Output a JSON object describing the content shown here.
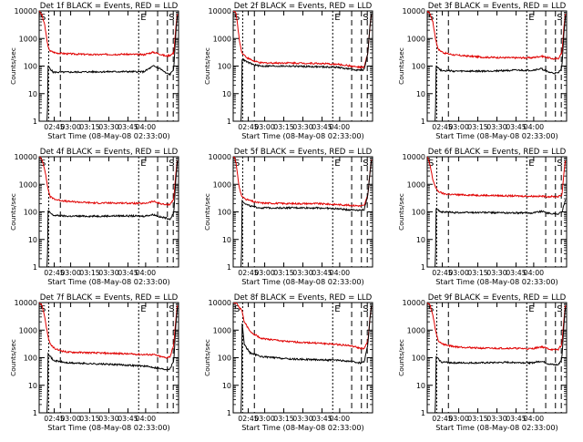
{
  "figure": {
    "ylabel": "Counts/sec",
    "xlabel": "Start Time (08-May-08 02:33:00)",
    "legend": "BLACK = Events, RED = LLD",
    "ticks": [
      "02:45",
      "03:00",
      "03:15",
      "03:30",
      "03:45",
      "04:00"
    ],
    "yticks": [
      "1",
      "10",
      "100",
      "1000",
      "10000"
    ]
  },
  "colors": {
    "events": "#000000",
    "lld": "#e00000"
  },
  "chart_data": [
    {
      "type": "line",
      "title": "Det 1f BLACK = Events, RED = LLD",
      "marker_s": "S",
      "marker_e": "E",
      "ylim": [
        1,
        10000
      ],
      "xlim_min": [
        0,
        100
      ],
      "events_min": [
        0,
        5.9,
        6.3,
        10,
        20,
        40,
        60,
        75,
        82,
        87,
        91,
        94,
        96.6,
        98.2,
        99.5
      ],
      "events_cps": [
        1,
        1,
        100,
        60,
        60,
        62,
        63,
        62,
        100,
        80,
        55,
        50,
        80,
        2000,
        10000
      ],
      "lld_min": [
        0,
        2,
        4,
        6.3,
        8,
        12,
        20,
        40,
        60,
        75,
        82,
        87,
        91,
        94,
        96.6,
        98.2,
        99.5
      ],
      "lld_cps": [
        10000,
        7000,
        3000,
        500,
        350,
        300,
        280,
        260,
        270,
        260,
        320,
        270,
        230,
        250,
        300,
        3000,
        10000
      ]
    },
    {
      "type": "line",
      "title": "Det 2f BLACK = Events, RED = LLD",
      "marker_s": "S",
      "marker_e": "E",
      "ylim": [
        1,
        10000
      ],
      "xlim_min": [
        0,
        100
      ],
      "events_min": [
        0,
        5.9,
        6.3,
        10,
        15,
        20,
        40,
        60,
        75,
        82,
        87,
        91,
        94,
        96.6,
        98.2,
        99.5
      ],
      "events_cps": [
        1,
        1,
        180,
        140,
        110,
        100,
        100,
        95,
        90,
        80,
        75,
        70,
        75,
        300,
        3000,
        10000
      ],
      "lld_min": [
        0,
        1,
        2,
        3.2,
        4.5,
        6.3,
        10,
        15,
        20,
        40,
        60,
        75,
        82,
        87,
        91,
        94,
        96.6,
        98.2,
        99.5
      ],
      "lld_cps": [
        10000,
        10000,
        8000,
        3000,
        800,
        300,
        200,
        150,
        130,
        130,
        125,
        115,
        105,
        95,
        90,
        90,
        300,
        3000,
        10000
      ]
    },
    {
      "type": "line",
      "title": "Det 3f BLACK = Events, RED = LLD",
      "marker_s": "S",
      "marker_e": "E",
      "ylim": [
        1,
        10000
      ],
      "xlim_min": [
        0,
        100
      ],
      "events_min": [
        0,
        5.9,
        6.3,
        10,
        20,
        40,
        60,
        75,
        82,
        87,
        91,
        94,
        96.6,
        98.2,
        99.5
      ],
      "events_cps": [
        1,
        1,
        100,
        70,
        65,
        65,
        70,
        70,
        80,
        60,
        55,
        55,
        90,
        2000,
        10000
      ],
      "lld_min": [
        0,
        2,
        4,
        6.3,
        8,
        12,
        20,
        40,
        60,
        75,
        82,
        87,
        91,
        94,
        96.6,
        98.2,
        99.5
      ],
      "lld_cps": [
        10000,
        8000,
        4000,
        800,
        400,
        300,
        250,
        210,
        200,
        200,
        230,
        200,
        180,
        190,
        300,
        3000,
        10000
      ]
    },
    {
      "type": "line",
      "title": "Det 4f BLACK = Events, RED = LLD",
      "marker_s": "S",
      "marker_e": "E",
      "ylim": [
        1,
        10000
      ],
      "xlim_min": [
        0,
        100
      ],
      "events_min": [
        0,
        5.9,
        6.3,
        10,
        20,
        40,
        60,
        75,
        82,
        87,
        91,
        94,
        96.6,
        98.2,
        99.5
      ],
      "events_cps": [
        1,
        1,
        110,
        75,
        70,
        70,
        72,
        70,
        80,
        65,
        60,
        55,
        90,
        2000,
        10000
      ],
      "lld_min": [
        0,
        2,
        4,
        6.3,
        8,
        12,
        20,
        40,
        60,
        75,
        82,
        87,
        91,
        94,
        96.6,
        98.2,
        99.5
      ],
      "lld_cps": [
        10000,
        8000,
        3500,
        700,
        350,
        280,
        240,
        210,
        210,
        200,
        240,
        200,
        180,
        190,
        300,
        3000,
        10000
      ]
    },
    {
      "type": "line",
      "title": "Det 5f BLACK = Events, RED = LLD",
      "marker_s": "S",
      "marker_e": "E",
      "ylim": [
        1,
        10000
      ],
      "xlim_min": [
        0,
        100
      ],
      "events_min": [
        0,
        5.9,
        6.3,
        10,
        15,
        20,
        40,
        60,
        75,
        82,
        87,
        91,
        94,
        96.6,
        98.2,
        99.5
      ],
      "events_cps": [
        1,
        1,
        250,
        180,
        150,
        140,
        140,
        140,
        130,
        120,
        120,
        115,
        120,
        400,
        3000,
        10000
      ],
      "lld_min": [
        0,
        1,
        2,
        3.2,
        4.5,
        6.3,
        10,
        15,
        20,
        40,
        60,
        75,
        82,
        87,
        91,
        94,
        96.6,
        98.2,
        99.5
      ],
      "lld_cps": [
        10000,
        10000,
        6000,
        2000,
        700,
        350,
        280,
        230,
        210,
        200,
        200,
        185,
        175,
        170,
        165,
        170,
        400,
        3000,
        10000
      ]
    },
    {
      "type": "line",
      "title": "Det 6f BLACK = Events, RED = LLD",
      "marker_s": "S",
      "marker_e": "E",
      "ylim": [
        1,
        10000
      ],
      "xlim_min": [
        0,
        100
      ],
      "events_min": [
        0,
        5.9,
        6.3,
        10,
        20,
        40,
        60,
        75,
        82,
        87,
        91,
        94,
        96.6,
        98.2,
        99.5
      ],
      "events_cps": [
        1,
        1,
        130,
        100,
        95,
        95,
        92,
        92,
        105,
        90,
        85,
        85,
        100,
        180,
        300
      ],
      "lld_min": [
        0,
        2,
        4,
        6.3,
        8,
        12,
        20,
        40,
        60,
        75,
        82,
        87,
        91,
        94,
        96.6,
        98.2,
        99.5
      ],
      "lld_cps": [
        10000,
        5000,
        1500,
        700,
        550,
        450,
        420,
        400,
        380,
        370,
        370,
        360,
        360,
        360,
        400,
        3000,
        10000
      ]
    },
    {
      "type": "line",
      "title": "Det 7f BLACK = Events, RED = LLD",
      "marker_s": "S",
      "marker_e": "E",
      "ylim": [
        1,
        10000
      ],
      "xlim_min": [
        0,
        100
      ],
      "events_min": [
        0,
        5.9,
        6.3,
        10,
        20,
        40,
        60,
        75,
        82,
        87,
        91,
        94,
        96.6,
        98.2,
        99.5
      ],
      "events_cps": [
        1,
        1,
        150,
        80,
        65,
        60,
        55,
        50,
        45,
        40,
        38,
        40,
        80,
        2000,
        10000
      ],
      "lld_min": [
        0,
        2,
        4,
        6.3,
        8,
        12,
        20,
        40,
        60,
        75,
        82,
        87,
        91,
        94,
        96.6,
        98.2,
        99.5
      ],
      "lld_cps": [
        10000,
        8000,
        3000,
        600,
        300,
        200,
        160,
        150,
        140,
        130,
        130,
        110,
        100,
        110,
        300,
        3000,
        10000
      ]
    },
    {
      "type": "line",
      "title": "Det 8f BLACK = Events, RED = LLD",
      "marker_s": "S",
      "marker_e": "E",
      "ylim": [
        1,
        10000
      ],
      "xlim_min": [
        0,
        100
      ],
      "events_min": [
        0,
        5.9,
        6.3,
        8,
        12,
        20,
        40,
        60,
        75,
        82,
        87,
        91,
        94,
        96.6,
        98.2,
        99.5
      ],
      "events_cps": [
        1,
        1,
        2000,
        300,
        150,
        110,
        90,
        85,
        80,
        75,
        70,
        65,
        70,
        300,
        3000,
        10000
      ],
      "lld_min": [
        0,
        2,
        4,
        6.3,
        8,
        12,
        20,
        40,
        60,
        75,
        82,
        87,
        91,
        94,
        96.6,
        98.2,
        99.5
      ],
      "lld_cps": [
        10000,
        10000,
        7000,
        5000,
        2000,
        900,
        500,
        380,
        340,
        300,
        280,
        250,
        220,
        210,
        400,
        3000,
        10000
      ]
    },
    {
      "type": "line",
      "title": "Det 9f BLACK = Events, RED = LLD",
      "marker_s": "S",
      "marker_e": "E",
      "ylim": [
        1,
        10000
      ],
      "xlim_min": [
        0,
        100
      ],
      "events_min": [
        0,
        5.9,
        6.3,
        10,
        20,
        40,
        60,
        75,
        82,
        87,
        91,
        94,
        96.6,
        98.2,
        99.5
      ],
      "events_cps": [
        1,
        1,
        110,
        70,
        65,
        65,
        68,
        65,
        75,
        60,
        55,
        55,
        90,
        2000,
        10000
      ],
      "lld_min": [
        0,
        2,
        4,
        6.3,
        8,
        12,
        20,
        40,
        60,
        75,
        82,
        87,
        91,
        94,
        96.6,
        98.2,
        99.5
      ],
      "lld_cps": [
        10000,
        8000,
        3500,
        800,
        400,
        300,
        250,
        220,
        220,
        210,
        250,
        210,
        190,
        200,
        300,
        3000,
        10000
      ]
    }
  ]
}
